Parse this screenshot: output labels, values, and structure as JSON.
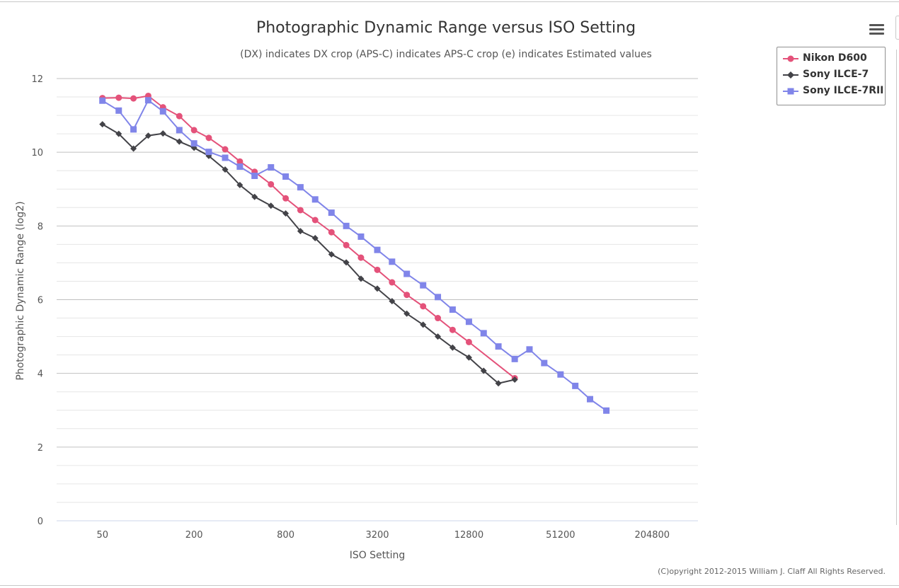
{
  "chart_data": {
    "type": "line",
    "title": "Photographic Dynamic Range versus ISO Setting",
    "subtitle": "(DX) indicates DX crop (APS-C) indicates APS-C crop (e) indicates Estimated values",
    "xlabel": "ISO Setting",
    "ylabel": "Photographic Dynamic Range (log2)",
    "x_scale": "log2",
    "x_ticks": [
      50,
      200,
      800,
      3200,
      12800,
      51200,
      204800
    ],
    "xlim": [
      25,
      409600
    ],
    "ylim": [
      0,
      12
    ],
    "y_ticks": [
      0,
      2,
      4,
      6,
      8,
      10,
      12
    ],
    "grid": true,
    "legend_position": "right",
    "series": [
      {
        "name": "Nikon D600",
        "color": "#e4527a",
        "marker": "circle",
        "x": [
          50,
          64,
          80,
          100,
          125,
          160,
          200,
          250,
          320,
          400,
          500,
          640,
          800,
          1000,
          1250,
          1600,
          2000,
          2500,
          3200,
          4000,
          5000,
          6400,
          8000,
          10000,
          12800,
          25600
        ],
        "y": [
          11.47,
          11.48,
          11.46,
          11.53,
          11.22,
          10.98,
          10.6,
          10.39,
          10.08,
          9.75,
          9.47,
          9.13,
          8.75,
          8.43,
          8.16,
          7.83,
          7.48,
          7.14,
          6.81,
          6.47,
          6.13,
          5.82,
          5.5,
          5.18,
          4.85,
          3.87
        ]
      },
      {
        "name": "Sony ILCE-7",
        "color": "#434348",
        "marker": "diamond",
        "x": [
          50,
          64,
          80,
          100,
          125,
          160,
          200,
          250,
          320,
          400,
          500,
          640,
          800,
          1000,
          1250,
          1600,
          2000,
          2500,
          3200,
          4000,
          5000,
          6400,
          8000,
          10000,
          12800,
          16000,
          20000,
          25600
        ],
        "y": [
          10.76,
          10.5,
          10.1,
          10.45,
          10.51,
          10.29,
          10.12,
          9.9,
          9.53,
          9.11,
          8.79,
          8.55,
          8.34,
          7.86,
          7.67,
          7.23,
          7.01,
          6.57,
          6.3,
          5.96,
          5.62,
          5.32,
          5.0,
          4.7,
          4.43,
          4.07,
          3.73,
          3.83
        ]
      },
      {
        "name": "Sony ILCE-7RII",
        "color": "#8085e9",
        "marker": "square",
        "x": [
          50,
          64,
          80,
          100,
          125,
          160,
          200,
          250,
          320,
          400,
          500,
          640,
          800,
          1000,
          1250,
          1600,
          2000,
          2500,
          3200,
          4000,
          5000,
          6400,
          8000,
          10000,
          12800,
          16000,
          20000,
          25600,
          32000,
          40000,
          51200,
          64000,
          80000,
          102400
        ],
        "y": [
          11.4,
          11.13,
          10.62,
          11.41,
          11.11,
          10.6,
          10.24,
          10.01,
          9.85,
          9.61,
          9.36,
          9.59,
          9.34,
          9.05,
          8.72,
          8.36,
          8.0,
          7.71,
          7.35,
          7.03,
          6.7,
          6.39,
          6.07,
          5.73,
          5.4,
          5.09,
          4.73,
          4.39,
          4.65,
          4.28,
          3.97,
          3.66,
          3.3,
          2.99
        ]
      }
    ]
  },
  "copyright": "(C)opyright 2012-2015 William J. Claff All Rights Reserved.",
  "menu_icon": "hamburger-menu-icon"
}
